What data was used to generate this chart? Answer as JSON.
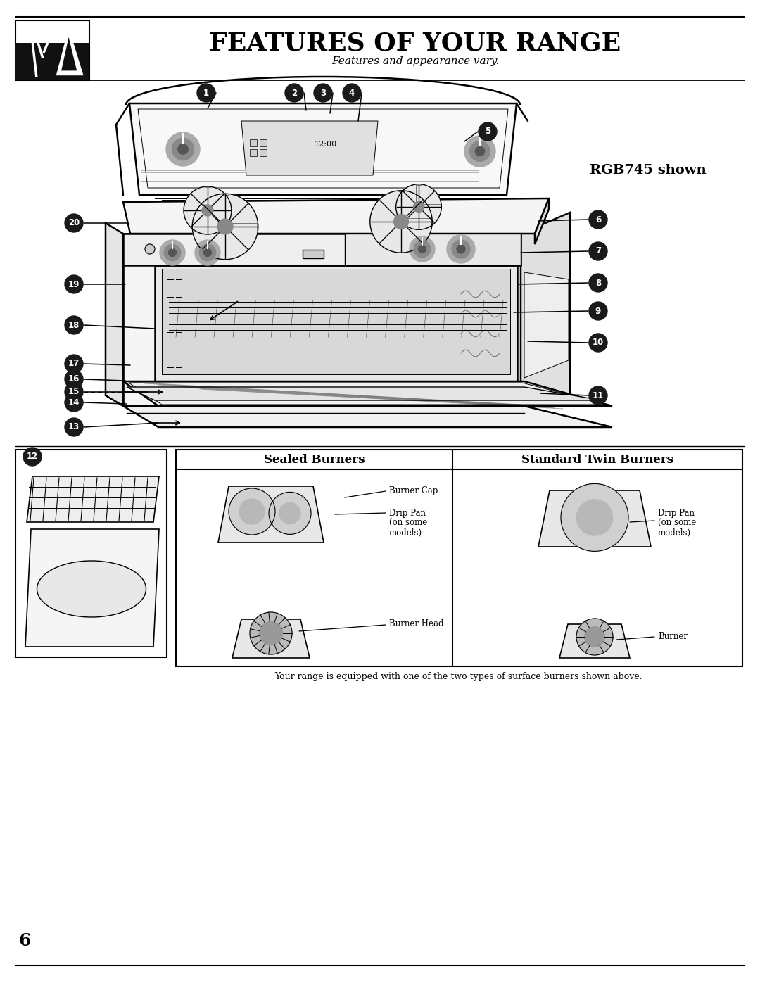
{
  "title": "FEATURES OF YOUR RANGE",
  "subtitle": "Features and appearance vary.",
  "model_label": "RGB745 shown",
  "bg_color": "#ffffff",
  "title_fontsize": 26,
  "subtitle_fontsize": 11,
  "model_fontsize": 14,
  "page_number": "6",
  "bottom_note": "Your range is equipped with one of the two types of surface burners shown above.",
  "sealed_burners_title": "Sealed Burners",
  "standard_burners_title": "Standard Twin Burners",
  "line_color": "#000000",
  "circle_fill": "#1a1a1a",
  "circle_text_color": "#ffffff",
  "lw_main": 1.8,
  "lw_detail": 1.0,
  "lw_thin": 0.7
}
